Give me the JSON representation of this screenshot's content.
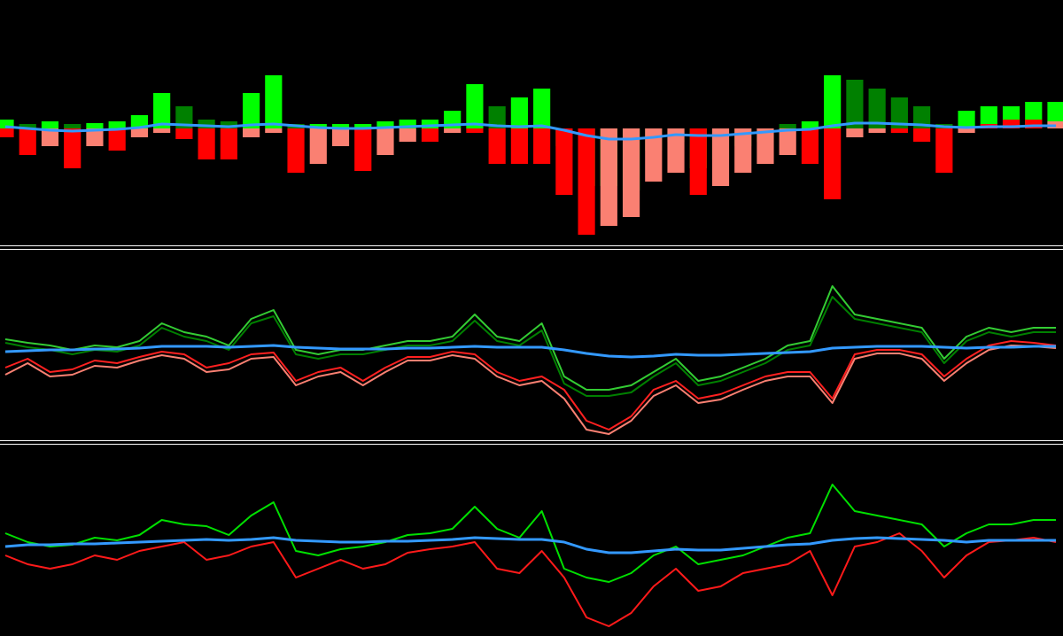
{
  "chart_data": [
    {
      "type": "bar",
      "ylim": [
        -130,
        145
      ],
      "series": [
        {
          "color": "#00ff00",
          "color_alt": "#008000",
          "values": [
            10,
            5,
            8,
            5,
            6,
            8,
            15,
            40,
            25,
            10,
            8,
            40,
            60,
            5,
            5,
            5,
            5,
            8,
            10,
            10,
            20,
            50,
            25,
            35,
            45,
            -20,
            -65,
            -65,
            -70,
            -25,
            -15,
            -45,
            -35,
            -20,
            -15,
            5,
            8,
            60,
            55,
            45,
            35,
            25,
            5,
            20,
            25,
            25,
            30,
            30
          ]
        },
        {
          "color": "#ff0000",
          "color_alt": "#fa8072",
          "values": [
            -10,
            -30,
            -20,
            -45,
            -20,
            -25,
            -10,
            -5,
            -12,
            -35,
            -35,
            -10,
            -5,
            -50,
            -40,
            -20,
            -48,
            -30,
            -15,
            -15,
            -5,
            -5,
            -40,
            -40,
            -40,
            -75,
            -120,
            -110,
            -100,
            -60,
            -50,
            -75,
            -65,
            -50,
            -40,
            -30,
            -40,
            -80,
            -10,
            -5,
            -5,
            -15,
            -50,
            -5,
            5,
            10,
            10,
            8
          ]
        },
        {
          "type": "line",
          "color": "#3399ff",
          "values": [
            2,
            0,
            -2,
            -3,
            -2,
            -1,
            1,
            5,
            4,
            3,
            2,
            4,
            5,
            3,
            1,
            0,
            0,
            1,
            2,
            3,
            4,
            5,
            3,
            2,
            3,
            -2,
            -8,
            -12,
            -12,
            -10,
            -7,
            -8,
            -8,
            -6,
            -4,
            -2,
            -1,
            3,
            6,
            6,
            5,
            4,
            2,
            1,
            2,
            2,
            3,
            3
          ]
        }
      ]
    },
    {
      "type": "line",
      "ylim": [
        -102,
        112
      ],
      "series": [
        {
          "color": "#33cc33",
          "values": [
            12,
            8,
            5,
            0,
            5,
            3,
            10,
            30,
            20,
            15,
            5,
            35,
            45,
            0,
            -5,
            0,
            0,
            5,
            10,
            10,
            15,
            40,
            15,
            10,
            30,
            -30,
            -45,
            -45,
            -40,
            -25,
            -10,
            -35,
            -30,
            -20,
            -10,
            5,
            10,
            72,
            40,
            35,
            30,
            25,
            -10,
            15,
            25,
            20,
            25,
            25
          ]
        },
        {
          "color": "#008000",
          "values": [
            8,
            3,
            0,
            -5,
            0,
            -2,
            5,
            25,
            15,
            10,
            0,
            30,
            38,
            -5,
            -10,
            -5,
            -5,
            0,
            5,
            5,
            10,
            33,
            10,
            5,
            22,
            -38,
            -52,
            -52,
            -48,
            -30,
            -15,
            -40,
            -35,
            -25,
            -15,
            0,
            5,
            60,
            35,
            30,
            25,
            20,
            -15,
            10,
            20,
            15,
            20,
            20
          ]
        },
        {
          "color": "#ff2020",
          "values": [
            -20,
            -10,
            -25,
            -22,
            -12,
            -15,
            -8,
            -2,
            -5,
            -20,
            -15,
            -5,
            -3,
            -35,
            -25,
            -20,
            -35,
            -20,
            -8,
            -8,
            -2,
            -5,
            -25,
            -35,
            -30,
            -45,
            -80,
            -90,
            -75,
            -45,
            -35,
            -55,
            -50,
            -40,
            -30,
            -25,
            -25,
            -55,
            -5,
            0,
            0,
            -5,
            -30,
            -10,
            5,
            10,
            8,
            5
          ]
        },
        {
          "color": "#fa8072",
          "values": [
            -28,
            -15,
            -30,
            -28,
            -18,
            -20,
            -12,
            -6,
            -10,
            -25,
            -22,
            -10,
            -8,
            -40,
            -30,
            -25,
            -40,
            -25,
            -12,
            -12,
            -6,
            -10,
            -30,
            -40,
            -35,
            -55,
            -90,
            -95,
            -80,
            -52,
            -40,
            -60,
            -56,
            -45,
            -35,
            -30,
            -30,
            -60,
            -10,
            -4,
            -4,
            -10,
            -35,
            -15,
            0,
            5,
            4,
            2
          ]
        },
        {
          "color": "#3399ff",
          "values": [
            -2,
            -1,
            0,
            0,
            1,
            1,
            2,
            4,
            4,
            4,
            3,
            4,
            5,
            3,
            2,
            1,
            1,
            1,
            2,
            2,
            3,
            4,
            3,
            3,
            3,
            0,
            -4,
            -7,
            -8,
            -7,
            -5,
            -6,
            -6,
            -5,
            -4,
            -3,
            -2,
            2,
            3,
            4,
            4,
            4,
            3,
            2,
            3,
            3,
            4,
            4
          ]
        }
      ]
    },
    {
      "type": "line",
      "ylim": [
        -106,
        109
      ],
      "series": [
        {
          "color": "#00e000",
          "values": [
            10,
            0,
            -5,
            -3,
            5,
            2,
            8,
            25,
            20,
            18,
            8,
            30,
            45,
            -10,
            -15,
            -8,
            -5,
            0,
            8,
            10,
            15,
            40,
            15,
            5,
            35,
            -30,
            -40,
            -45,
            -35,
            -15,
            -5,
            -25,
            -20,
            -15,
            -5,
            5,
            10,
            65,
            35,
            30,
            25,
            20,
            -5,
            10,
            20,
            20,
            25,
            25
          ]
        },
        {
          "color": "#ff1a1a",
          "values": [
            -15,
            -25,
            -30,
            -25,
            -15,
            -20,
            -10,
            -5,
            0,
            -20,
            -15,
            -5,
            0,
            -40,
            -30,
            -20,
            -30,
            -25,
            -12,
            -8,
            -5,
            0,
            -30,
            -35,
            -10,
            -40,
            -85,
            -95,
            -80,
            -50,
            -30,
            -55,
            -50,
            -35,
            -30,
            -25,
            -10,
            -60,
            -5,
            0,
            10,
            -10,
            -40,
            -15,
            0,
            2,
            5,
            0
          ]
        },
        {
          "color": "#3399ff",
          "values": [
            -5,
            -3,
            -3,
            -2,
            -2,
            -1,
            0,
            1,
            2,
            3,
            2,
            3,
            5,
            2,
            1,
            0,
            0,
            1,
            1,
            2,
            3,
            5,
            4,
            3,
            3,
            0,
            -8,
            -12,
            -12,
            -10,
            -8,
            -9,
            -9,
            -7,
            -5,
            -3,
            -2,
            2,
            4,
            5,
            4,
            3,
            2,
            0,
            2,
            2,
            2,
            2
          ]
        }
      ]
    }
  ]
}
